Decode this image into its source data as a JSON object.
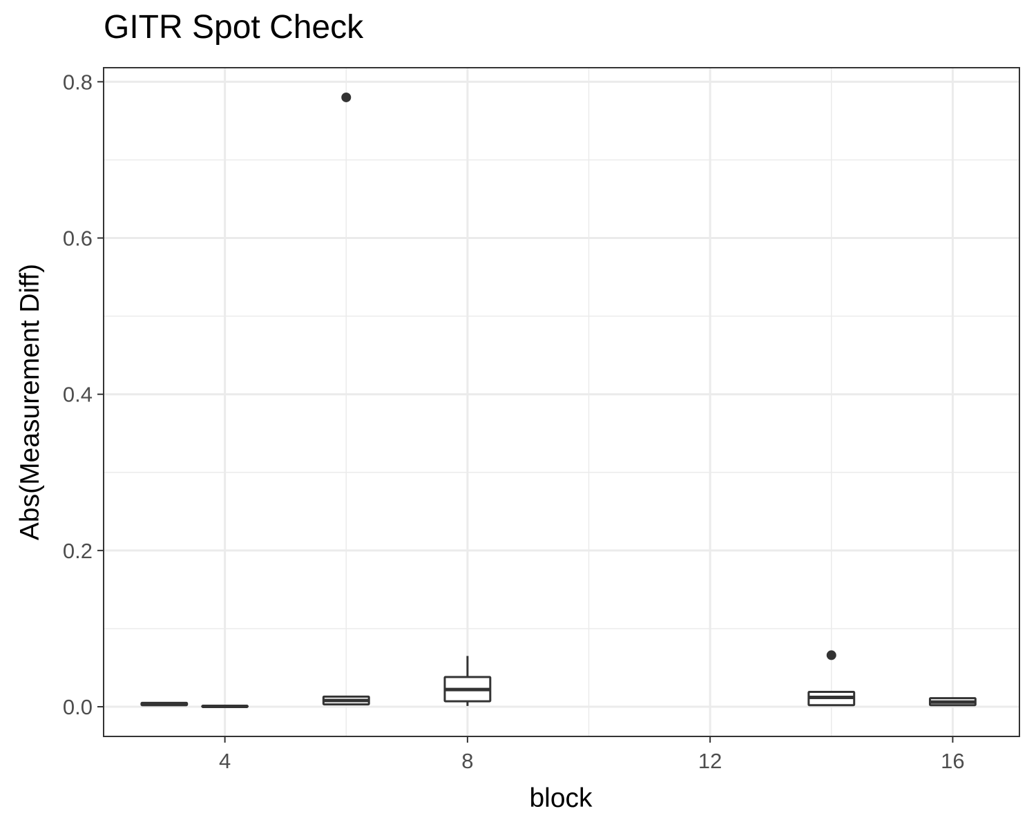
{
  "chart_data": {
    "type": "boxplot",
    "title": "GITR Spot Check",
    "xlabel": "block",
    "ylabel": "Abs(Measurement Diff)",
    "xlim": [
      2,
      17.1
    ],
    "ylim": [
      -0.038,
      0.818
    ],
    "x_ticks": [
      4,
      8,
      12,
      16
    ],
    "y_ticks": [
      0.0,
      0.2,
      0.4,
      0.6,
      0.8
    ],
    "y_tick_labels": [
      "0.0",
      "0.2",
      "0.4",
      "0.6",
      "0.8"
    ],
    "x_minor_ticks": [
      6,
      10,
      14
    ],
    "y_minor_ticks": [
      0.1,
      0.3,
      0.5,
      0.7
    ],
    "grid": true,
    "legend": "none",
    "boxes": [
      {
        "x": 3,
        "min": 0.001,
        "q1": 0.002,
        "median": 0.003,
        "q3": 0.005,
        "max": 0.006,
        "outliers": []
      },
      {
        "x": 4,
        "min": 0.0,
        "q1": 0.0,
        "median": 0.0005,
        "q3": 0.001,
        "max": 0.0015,
        "outliers": []
      },
      {
        "x": 6,
        "min": 0.002,
        "q1": 0.003,
        "median": 0.008,
        "q3": 0.013,
        "max": 0.014,
        "outliers": [
          0.78
        ]
      },
      {
        "x": 8,
        "min": 0.001,
        "q1": 0.007,
        "median": 0.022,
        "q3": 0.038,
        "max": 0.065,
        "outliers": []
      },
      {
        "x": 14,
        "min": 0.001,
        "q1": 0.002,
        "median": 0.012,
        "q3": 0.019,
        "max": 0.02,
        "outliers": [
          0.066
        ]
      },
      {
        "x": 16,
        "min": 0.001,
        "q1": 0.002,
        "median": 0.006,
        "q3": 0.011,
        "max": 0.012,
        "outliers": []
      }
    ],
    "box_width": 0.75,
    "colors": {
      "box": "#333333",
      "grid": "#ebebeb",
      "panel_border": "#333333",
      "fill": "#ffffff"
    }
  }
}
